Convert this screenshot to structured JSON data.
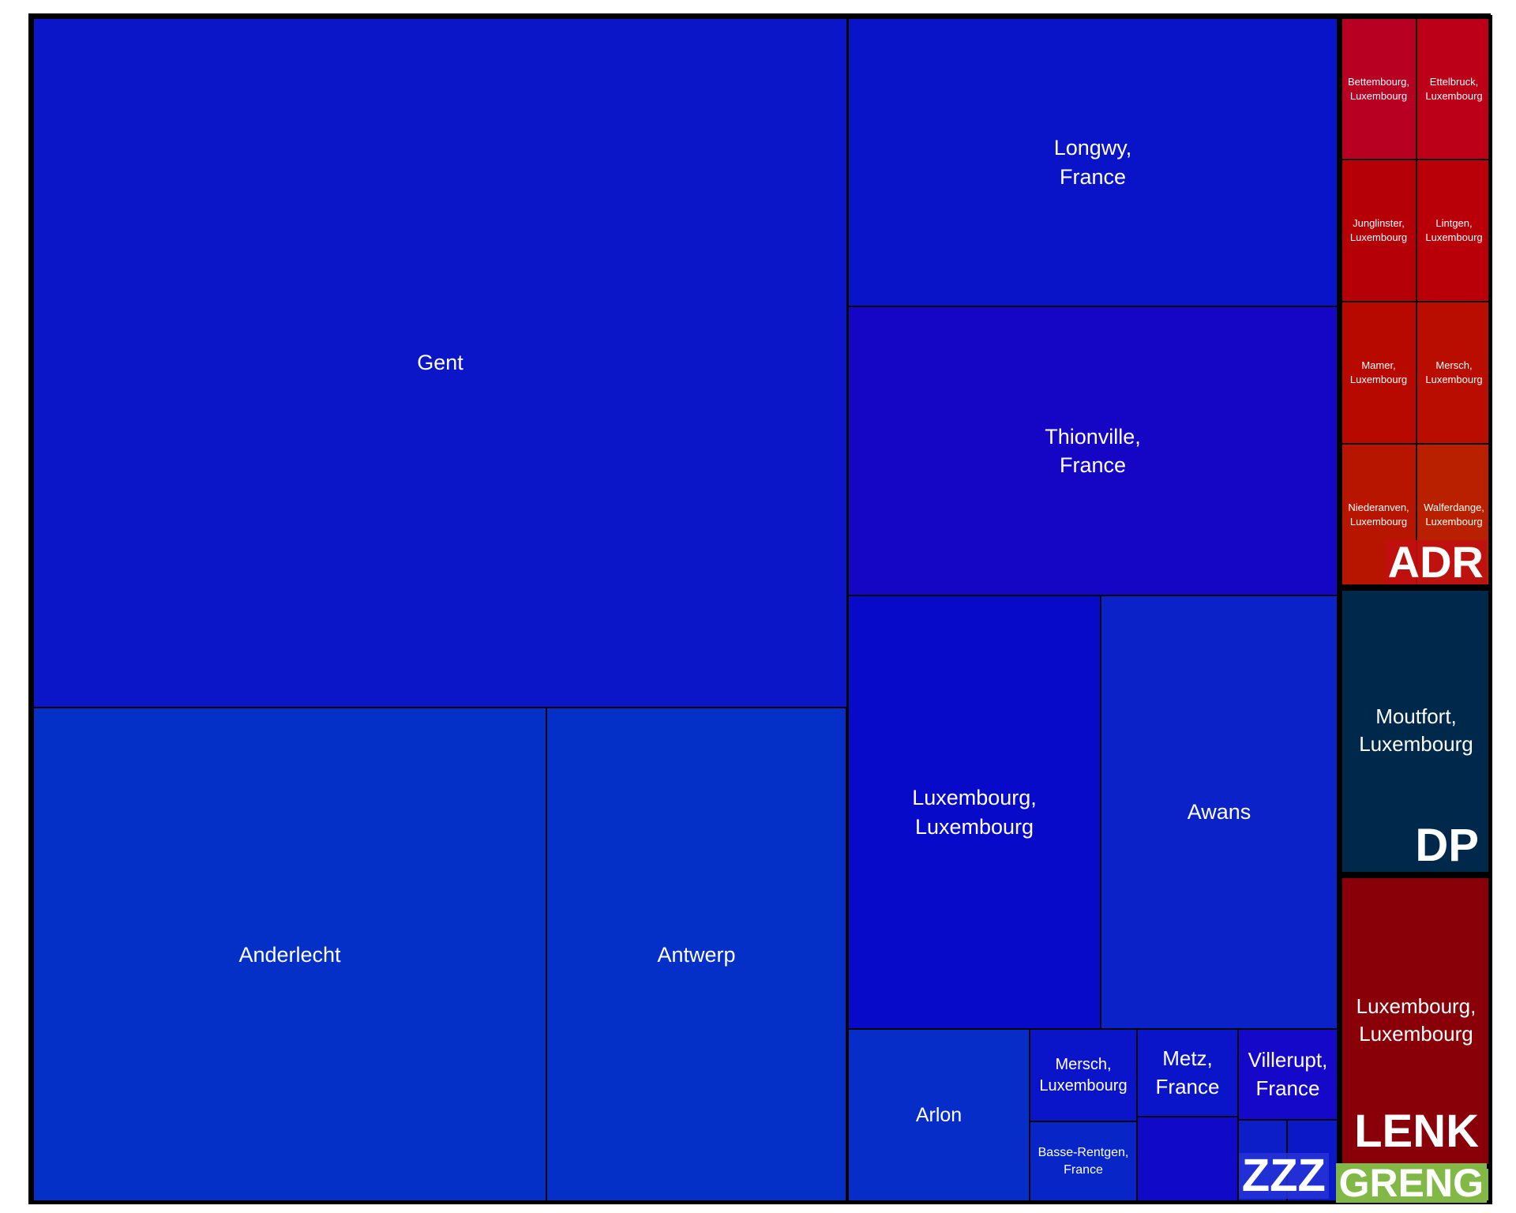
{
  "chart_data": {
    "type": "treemap",
    "groups": [
      {
        "name": "ZZZ",
        "color": "#2634d6",
        "children": [
          {
            "label": "Gent",
            "color": "#0b16c9"
          },
          {
            "label": "Longwy, France",
            "color": "#0914c8"
          },
          {
            "label": "Thionville, France",
            "color": "#1506c6"
          },
          {
            "label": "Anderlecht",
            "color": "#0530c8"
          },
          {
            "label": "Antwerp",
            "color": "#0530c8"
          },
          {
            "label": "Luxembourg, Luxembourg",
            "color": "#070ac8"
          },
          {
            "label": "Awans",
            "color": "#0a22c7"
          },
          {
            "label": "Arlon",
            "color": "#062dc8"
          },
          {
            "label": "Mersch, Luxembourg",
            "color": "#0a14c8"
          },
          {
            "label": "Basse-Rentgen, France",
            "color": "#0826c8"
          },
          {
            "label": "Metz, France",
            "color": "#0a14c8"
          },
          {
            "label": "",
            "color": "#1109c8"
          },
          {
            "label": "Villerupt, France",
            "color": "#1608c8"
          },
          {
            "label": "",
            "color": "#0b1ec8"
          },
          {
            "label": "",
            "color": "#0a18c8"
          }
        ]
      },
      {
        "name": "ADR",
        "color": "#c01010",
        "children": [
          {
            "label": "Bettembourg, Luxembourg",
            "color": "#b80022"
          },
          {
            "label": "Ettelbruck, Luxembourg",
            "color": "#bb0018"
          },
          {
            "label": "Junglinster, Luxembourg",
            "color": "#b60008"
          },
          {
            "label": "Lintgen, Luxembourg",
            "color": "#b90008"
          },
          {
            "label": "Mamer, Luxembourg",
            "color": "#b80900"
          },
          {
            "label": "Mersch, Luxembourg",
            "color": "#b80d00"
          },
          {
            "label": "Niederanven, Luxembourg",
            "color": "#b81500"
          },
          {
            "label": "Walferdange, Luxembourg",
            "color": "#b82000"
          }
        ]
      },
      {
        "name": "DP",
        "color": "#002a4a",
        "children": [
          {
            "label": "Moutfort, Luxembourg",
            "color": "#00284a"
          }
        ]
      },
      {
        "name": "LENK",
        "color": "#8a0008",
        "children": [
          {
            "label": "Luxembourg, Luxembourg",
            "color": "#8a0008"
          }
        ]
      },
      {
        "name": "GRENG",
        "color": "#82b846",
        "children": []
      }
    ]
  }
}
